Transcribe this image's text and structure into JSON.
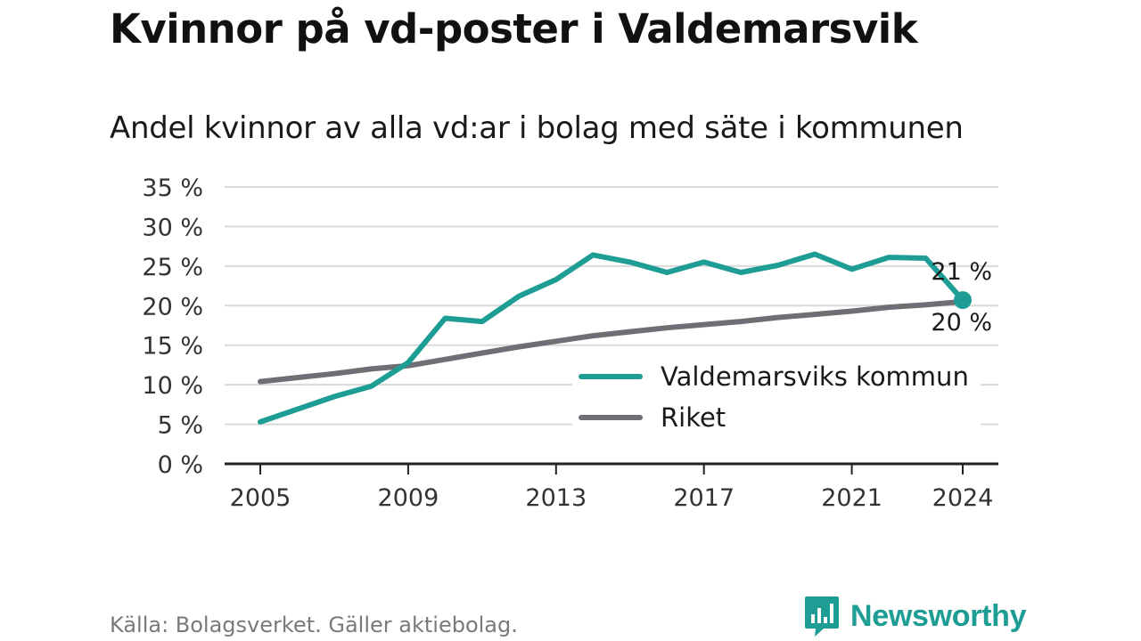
{
  "page": {
    "title": "Kvinnor på vd-poster i Valdemarsvik",
    "subtitle": "Andel kvinnor av alla vd:ar i bolag med säte i kommunen",
    "source": "Källa: Bolagsverket. Gäller aktiebolag.",
    "brand": "Newsworthy"
  },
  "colors": {
    "kommun": "#1d9d94",
    "riket": "#6e6e75",
    "grid": "#d9d9d9",
    "axis": "#222222",
    "brand": "#1d9d94"
  },
  "chart_data": {
    "type": "line",
    "x": [
      2005,
      2006,
      2007,
      2008,
      2009,
      2010,
      2011,
      2012,
      2013,
      2014,
      2015,
      2016,
      2017,
      2018,
      2019,
      2020,
      2021,
      2022,
      2023,
      2024
    ],
    "series": [
      {
        "name": "Valdemarsviks kommun",
        "color_key": "kommun",
        "values": [
          5.3,
          6.9,
          8.5,
          9.8,
          12.8,
          18.4,
          18.0,
          21.2,
          23.3,
          26.4,
          25.5,
          24.2,
          25.5,
          24.2,
          25.1,
          26.5,
          24.6,
          26.1,
          26.0,
          20.7
        ],
        "end_label": "21 %"
      },
      {
        "name": "Riket",
        "color_key": "riket",
        "values": [
          10.4,
          10.9,
          11.4,
          12.0,
          12.4,
          13.2,
          14.0,
          14.8,
          15.5,
          16.2,
          16.7,
          17.2,
          17.6,
          18.0,
          18.5,
          18.9,
          19.3,
          19.8,
          20.1,
          20.5
        ],
        "end_label": "20 %"
      }
    ],
    "ylim": [
      0,
      35
    ],
    "y_ticks": [
      0,
      5,
      10,
      15,
      20,
      25,
      30,
      35
    ],
    "y_tick_labels": [
      "0 %",
      "5 %",
      "10 %",
      "15 %",
      "20 %",
      "25 %",
      "30 %",
      "35 %"
    ],
    "x_ticks": [
      2005,
      2009,
      2013,
      2017,
      2021,
      2024
    ],
    "x_tick_labels": [
      "2005",
      "2009",
      "2013",
      "2017",
      "2021",
      "2024"
    ],
    "grid": true,
    "legend_position": "lower-right"
  }
}
